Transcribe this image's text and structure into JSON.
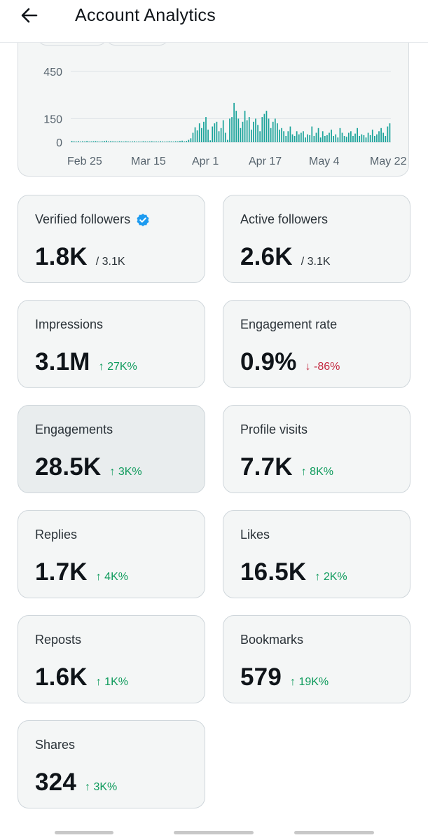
{
  "header": {
    "title": "Account Analytics",
    "back_icon": "arrow-left-icon"
  },
  "chart_data": {
    "type": "bar",
    "title": "",
    "xlabel": "",
    "ylabel": "",
    "ylim": [
      0,
      450
    ],
    "ytick_labels": [
      "450",
      "150",
      "0"
    ],
    "yticks": [
      450,
      150,
      0
    ],
    "xtick_labels": [
      "Feb 25",
      "Mar 15",
      "Apr 1",
      "Apr 17",
      "May 4",
      "May 22"
    ],
    "grid": true,
    "color": "#1aa39a",
    "values": [
      8,
      6,
      5,
      7,
      4,
      6,
      5,
      8,
      4,
      5,
      6,
      7,
      5,
      4,
      6,
      8,
      10,
      5,
      7,
      6,
      5,
      4,
      6,
      5,
      4,
      6,
      5,
      4,
      5,
      6,
      4,
      5,
      4,
      6,
      5,
      4,
      5,
      6,
      4,
      5,
      4,
      6,
      5,
      4,
      5,
      6,
      5,
      4,
      6,
      5,
      8,
      10,
      5,
      8,
      15,
      25,
      60,
      95,
      75,
      120,
      90,
      130,
      160,
      80,
      12,
      100,
      120,
      130,
      70,
      90,
      140,
      60,
      15,
      150,
      160,
      250,
      200,
      150,
      90,
      130,
      200,
      140,
      160,
      80,
      130,
      150,
      110,
      70,
      160,
      180,
      200,
      150,
      90,
      130,
      150,
      120,
      80,
      90,
      70,
      40,
      70,
      100,
      50,
      40,
      70,
      50,
      60,
      70,
      30,
      50,
      45,
      100,
      40,
      60,
      90,
      30,
      70,
      40,
      45,
      60,
      80,
      40,
      50,
      30,
      90,
      60,
      40,
      35,
      60,
      70,
      40,
      55,
      90,
      40,
      50,
      45,
      30,
      60,
      45,
      80,
      40,
      50,
      70,
      90,
      60,
      40,
      100,
      120
    ]
  },
  "cards": [
    {
      "label": "Verified followers",
      "value": "1.8K",
      "sub": "/ 3.1K",
      "change": "",
      "direction": "",
      "verified_icon": "verified-badge-icon"
    },
    {
      "label": "Active followers",
      "value": "2.6K",
      "sub": "/ 3.1K",
      "change": "",
      "direction": ""
    },
    {
      "label": "Impressions",
      "value": "3.1M",
      "sub": "",
      "change": "↑ 27K%",
      "direction": "up"
    },
    {
      "label": "Engagement rate",
      "value": "0.9%",
      "sub": "",
      "change": "↓ -86%",
      "direction": "down"
    },
    {
      "label": "Engagements",
      "value": "28.5K",
      "sub": "",
      "change": "↑ 3K%",
      "direction": "up",
      "selected": true
    },
    {
      "label": "Profile visits",
      "value": "7.7K",
      "sub": "",
      "change": "↑ 8K%",
      "direction": "up"
    },
    {
      "label": "Replies",
      "value": "1.7K",
      "sub": "",
      "change": "↑ 4K%",
      "direction": "up"
    },
    {
      "label": "Likes",
      "value": "16.5K",
      "sub": "",
      "change": "↑ 2K%",
      "direction": "up"
    },
    {
      "label": "Reposts",
      "value": "1.6K",
      "sub": "",
      "change": "↑ 1K%",
      "direction": "up"
    },
    {
      "label": "Bookmarks",
      "value": "579",
      "sub": "",
      "change": "↑ 19K%",
      "direction": "up"
    },
    {
      "label": "Shares",
      "value": "324",
      "sub": "",
      "change": "↑ 3K%",
      "direction": "up"
    }
  ],
  "colors": {
    "up": "#0d9a5b",
    "down": "#c3283f",
    "accent": "#1d9bf0",
    "bar": "#1aa39a"
  }
}
